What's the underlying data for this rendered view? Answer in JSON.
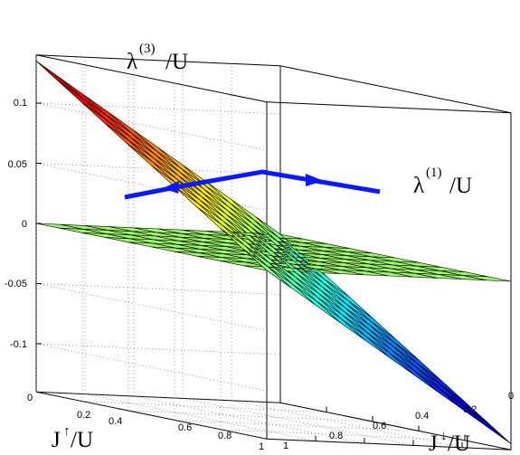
{
  "chart_data": {
    "type": "surface",
    "title": "",
    "axes": {
      "x": {
        "label_main": "J",
        "label_arrow": "↑",
        "label_unit": "/U",
        "range": [
          0,
          1
        ],
        "ticks": [
          "0",
          "0.2",
          "0.4",
          "0.6",
          "0.8",
          "1"
        ]
      },
      "y": {
        "label_main": "J",
        "label_arrow": "↓",
        "label_unit": "/U",
        "range": [
          0,
          1
        ],
        "ticks": [
          "0",
          "0.2",
          "0.4",
          "0.6",
          "0.8",
          "1"
        ]
      },
      "z": {
        "range": [
          -0.14,
          0.14
        ],
        "ticks": [
          "-0.1",
          "-0.05",
          "0",
          "0.05",
          "0.1"
        ]
      }
    },
    "grid": true,
    "colormap": "jet",
    "surfaces": [
      {
        "name": "λ(3)/U",
        "label_main": "λ",
        "label_sup": "(3)",
        "label_unit": "/U",
        "grid_size": 11,
        "corner_values": {
          "x0_y0": 0.135,
          "x1_y0": 0.0,
          "x0_y1": 0.0,
          "x1_y1": -0.135
        }
      },
      {
        "name": "λ(1)/U",
        "label_main": "λ",
        "label_sup": "(1)",
        "label_unit": "/U",
        "grid_size": 11,
        "values_note_free": true,
        "corner_values": {
          "x0_y0": 0.0,
          "x1_y0": 0.0,
          "x0_y1": 0.0,
          "x1_y1": 0.0
        },
        "color": "#9cf76b"
      }
    ],
    "arrow_path_color": "#0a1aff"
  }
}
